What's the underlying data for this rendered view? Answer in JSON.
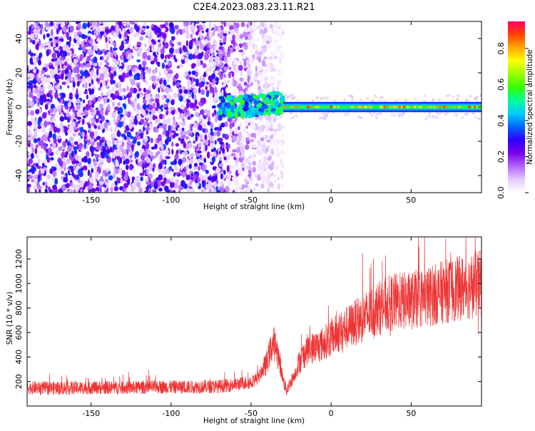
{
  "title": "C2E4.2023.083.23.11.R21",
  "chart_data": [
    {
      "type": "heatmap",
      "xlabel": "Height of straight line (km)",
      "ylabel": "Frequency (Hz)",
      "xlim": [
        -190,
        94
      ],
      "ylim": [
        -50,
        50
      ],
      "x_ticks": [
        -150,
        -100,
        -50,
        0,
        50
      ],
      "y_ticks": [
        -40,
        -20,
        0,
        20,
        40
      ],
      "grid": false,
      "colorbar": {
        "label": "Normalized spectral amplitude",
        "range": [
          0.0,
          0.95
        ],
        "ticks": [
          0.0,
          0.2,
          0.4,
          0.6,
          0.8
        ],
        "colormap": [
          "#ffffff",
          "#e5ccff",
          "#b266ff",
          "#7a00e6",
          "#2e00ff",
          "#0066ff",
          "#00ccff",
          "#00ff99",
          "#33ff00",
          "#99ff00",
          "#ffff00",
          "#ffaa00",
          "#ff4400",
          "#ff0066"
        ]
      },
      "regions": [
        {
          "x_range": [
            -190,
            -65
          ],
          "freq_range": [
            -50,
            50
          ],
          "character": "broadband noise",
          "amplitude_range": [
            0.05,
            0.35
          ]
        },
        {
          "x_range": [
            -65,
            -30
          ],
          "freq_range": [
            -50,
            50
          ],
          "character": "fading noise",
          "amplitude_range": [
            0.02,
            0.2
          ]
        },
        {
          "x_range": [
            -70,
            -30
          ],
          "freq_center": 1,
          "freq_halfwidth": 6,
          "character": "scattered signal",
          "amplitude_range": [
            0.3,
            0.6
          ]
        },
        {
          "x_range": [
            -30,
            94
          ],
          "freq_center": 0,
          "freq_halfwidth": 3,
          "character": "narrow carrier",
          "amplitude_range": [
            0.3,
            0.9
          ]
        }
      ]
    },
    {
      "type": "line",
      "xlabel": "Height of straight line (km)",
      "ylabel": "SNR (10 * v/v)",
      "xlim": [
        -190,
        94
      ],
      "ylim": [
        0,
        1380
      ],
      "x_ticks": [
        -150,
        -100,
        -50,
        0,
        50
      ],
      "y_ticks": [
        200,
        400,
        600,
        800,
        1000,
        1200
      ],
      "color": "#ee3333",
      "grid": false,
      "series": [
        {
          "x": [
            -190,
            -170,
            -150,
            -130,
            -110,
            -90,
            -70,
            -60,
            -50,
            -45,
            -40,
            -38,
            -36,
            -34,
            -32,
            -30,
            -28,
            -25,
            -22,
            -20,
            -15,
            -10,
            -5,
            0,
            5,
            10,
            15,
            20,
            25,
            30,
            35,
            40,
            50,
            60,
            70,
            80,
            94
          ],
          "y": [
            150,
            145,
            150,
            150,
            155,
            155,
            160,
            175,
            195,
            240,
            360,
            450,
            520,
            460,
            350,
            210,
            130,
            200,
            280,
            360,
            460,
            480,
            510,
            560,
            600,
            640,
            680,
            720,
            760,
            800,
            830,
            850,
            860,
            890,
            930,
            960,
            1000
          ]
        }
      ]
    }
  ]
}
